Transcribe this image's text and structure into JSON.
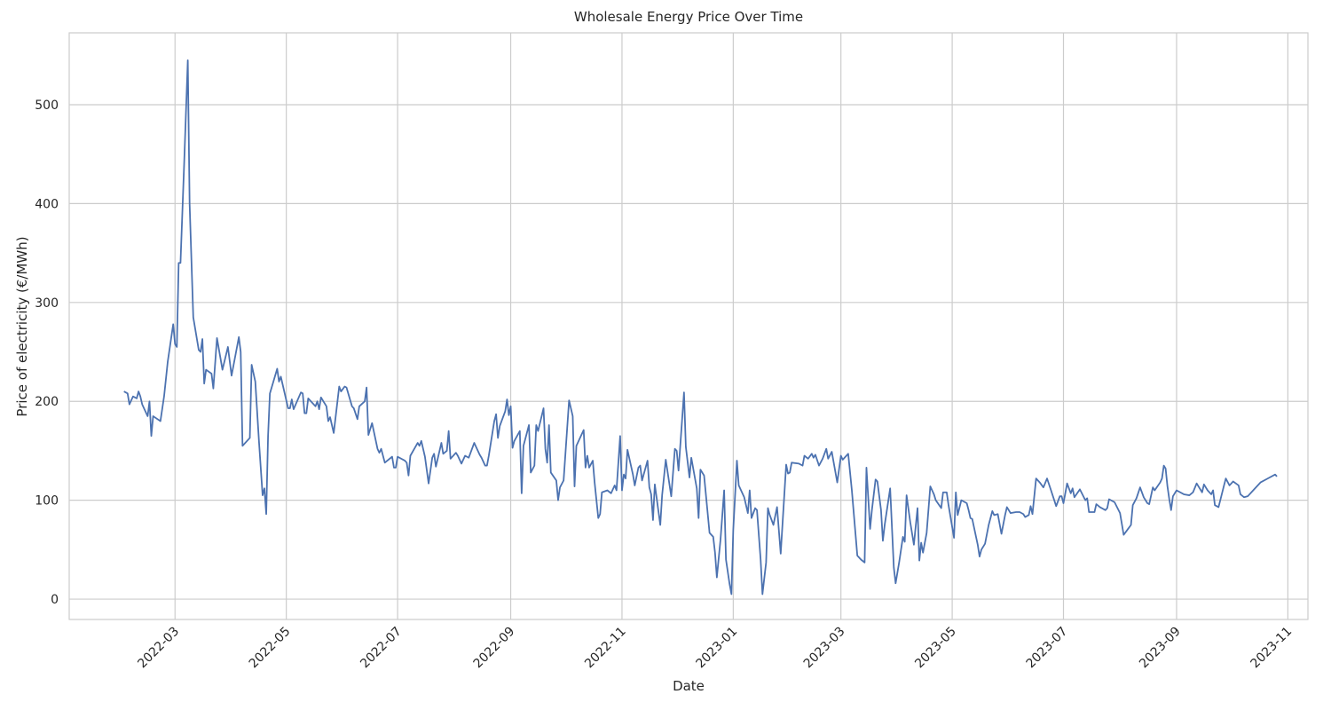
{
  "chart_data": {
    "type": "line",
    "title": "Wholesale Energy Price Over Time",
    "x_label": "Date",
    "y_label": "Price of electricity (€/MWh)",
    "grid": true,
    "xlim": [
      18994,
      19673
    ],
    "xticks": [
      {
        "value": 19052,
        "label": "2022-03"
      },
      {
        "value": 19113,
        "label": "2022-05"
      },
      {
        "value": 19174,
        "label": "2022-07"
      },
      {
        "value": 19236,
        "label": "2022-09"
      },
      {
        "value": 19297,
        "label": "2022-11"
      },
      {
        "value": 19358,
        "label": "2023-01"
      },
      {
        "value": 19417,
        "label": "2023-03"
      },
      {
        "value": 19478,
        "label": "2023-05"
      },
      {
        "value": 19539,
        "label": "2023-07"
      },
      {
        "value": 19601,
        "label": "2023-09"
      },
      {
        "value": 19662,
        "label": "2023-11"
      }
    ],
    "ylim": [
      -20.6,
      572.7
    ],
    "yticks": [
      0,
      100,
      200,
      300,
      400,
      500
    ],
    "x": [
      19024,
      19026,
      19027,
      19029,
      19031,
      19032,
      19033,
      19034,
      19037,
      19038,
      19039,
      19040,
      19044,
      19046,
      19048,
      19051,
      19052,
      19053,
      19054,
      19055,
      19057,
      19059,
      19060,
      19062,
      19065,
      19066,
      19067,
      19068,
      19069,
      19072,
      19073,
      19075,
      19078,
      19081,
      19083,
      19087,
      19088,
      19089,
      19093,
      19094,
      19096,
      19098,
      19100,
      19101,
      19102,
      19103,
      19104,
      19108,
      19109,
      19110,
      19114,
      19115,
      19116,
      19117,
      19121,
      19122,
      19123,
      19124,
      19125,
      19129,
      19130,
      19131,
      19132,
      19135,
      19136,
      19137,
      19139,
      19142,
      19143,
      19145,
      19146,
      19149,
      19150,
      19152,
      19153,
      19156,
      19157,
      19158,
      19160,
      19163,
      19164,
      19165,
      19167,
      19171,
      19172,
      19173,
      19174,
      19178,
      19179,
      19180,
      19181,
      19185,
      19186,
      19187,
      19189,
      19191,
      19193,
      19194,
      19195,
      19198,
      19199,
      19201,
      19202,
      19203,
      19206,
      19207,
      19209,
      19211,
      19213,
      19216,
      19219,
      19220,
      19222,
      19223,
      19224,
      19227,
      19228,
      19229,
      19230,
      19233,
      19234,
      19235,
      19236,
      19237,
      19238,
      19241,
      19242,
      19243,
      19246,
      19247,
      19249,
      19250,
      19251,
      19254,
      19255,
      19256,
      19257,
      19258,
      19261,
      19262,
      19263,
      19265,
      19268,
      19270,
      19271,
      19272,
      19276,
      19277,
      19278,
      19279,
      19281,
      19282,
      19284,
      19285,
      19286,
      19289,
      19291,
      19293,
      19294,
      19296,
      19297,
      19298,
      19299,
      19300,
      19303,
      19304,
      19306,
      19307,
      19308,
      19311,
      19312,
      19313,
      19314,
      19315,
      19318,
      19319,
      19321,
      19324,
      19326,
      19327,
      19328,
      19331,
      19332,
      19334,
      19335,
      19338,
      19339,
      19340,
      19342,
      19345,
      19347,
      19348,
      19349,
      19351,
      19353,
      19354,
      19356,
      19357,
      19358,
      19360,
      19361,
      19364,
      19366,
      19367,
      19368,
      19370,
      19371,
      19373,
      19374,
      19376,
      19377,
      19378,
      19380,
      19382,
      19384,
      19387,
      19388,
      19389,
      19390,
      19394,
      19396,
      19397,
      19399,
      19401,
      19402,
      19403,
      19405,
      19407,
      19409,
      19410,
      19412,
      19415,
      19417,
      19418,
      19421,
      19423,
      19426,
      19428,
      19430,
      19431,
      19433,
      19434,
      19436,
      19437,
      19439,
      19440,
      19441,
      19444,
      19446,
      19447,
      19449,
      19451,
      19452,
      19453,
      19455,
      19457,
      19459,
      19460,
      19461,
      19462,
      19464,
      19466,
      19468,
      19469,
      19472,
      19473,
      19475,
      19476,
      19479,
      19480,
      19481,
      19483,
      19486,
      19487,
      19488,
      19489,
      19492,
      19493,
      19494,
      19496,
      19498,
      19500,
      19501,
      19503,
      19505,
      19507,
      19508,
      19510,
      19513,
      19515,
      19517,
      19518,
      19520,
      19521,
      19522,
      19524,
      19526,
      19528,
      19530,
      19532,
      19535,
      19537,
      19538,
      19539,
      19541,
      19543,
      19544,
      19545,
      19548,
      19551,
      19552,
      19553,
      19556,
      19557,
      19559,
      19562,
      19563,
      19564,
      19567,
      19570,
      19572,
      19574,
      19576,
      19577,
      19579,
      19581,
      19583,
      19585,
      19586,
      19588,
      19589,
      19592,
      19593,
      19594,
      19595,
      19596,
      19597,
      19598,
      19599,
      19601,
      19605,
      19608,
      19610,
      19612,
      19615,
      19616,
      19618,
      19620,
      19621,
      19622,
      19624,
      19627,
      19628,
      19630,
      19632,
      19635,
      19636,
      19638,
      19640,
      19643,
      19647,
      19651,
      19655,
      19656
    ],
    "series": [
      {
        "name": "Price",
        "color": "#4c72b0",
        "values": [
          210,
          208,
          197,
          205,
          203,
          210,
          205,
          197,
          185,
          200,
          165,
          185,
          180,
          205,
          240,
          278,
          258,
          255,
          340,
          340,
          440,
          545,
          400,
          285,
          252,
          250,
          263,
          218,
          232,
          228,
          213,
          264,
          232,
          255,
          226,
          265,
          250,
          155,
          163,
          237,
          220,
          160,
          105,
          112,
          86,
          165,
          208,
          233,
          220,
          225,
          193,
          193,
          202,
          192,
          209,
          208,
          188,
          188,
          203,
          195,
          200,
          192,
          204,
          195,
          180,
          184,
          168,
          215,
          210,
          215,
          214,
          195,
          193,
          182,
          195,
          200,
          214,
          166,
          178,
          152,
          148,
          152,
          138,
          144,
          133,
          133,
          144,
          140,
          138,
          125,
          145,
          158,
          155,
          160,
          144,
          117,
          143,
          147,
          134,
          158,
          147,
          150,
          170,
          142,
          148,
          145,
          137,
          145,
          143,
          158,
          146,
          143,
          135,
          135,
          145,
          180,
          187,
          163,
          175,
          190,
          202,
          186,
          195,
          153,
          160,
          170,
          107,
          155,
          176,
          128,
          135,
          176,
          170,
          193,
          152,
          138,
          176,
          128,
          120,
          100,
          113,
          120,
          201,
          185,
          114,
          155,
          171,
          133,
          145,
          133,
          140,
          118,
          82,
          86,
          108,
          110,
          107,
          115,
          110,
          165,
          110,
          126,
          122,
          151,
          126,
          115,
          133,
          135,
          120,
          140,
          113,
          106,
          80,
          116,
          75,
          105,
          141,
          104,
          152,
          150,
          130,
          209,
          154,
          123,
          143,
          112,
          82,
          131,
          125,
          67,
          63,
          47,
          22,
          60,
          110,
          40,
          15,
          5,
          70,
          140,
          115,
          103,
          87,
          110,
          82,
          92,
          90,
          40,
          5,
          37,
          92,
          85,
          75,
          93,
          46,
          136,
          127,
          128,
          138,
          137,
          135,
          145,
          142,
          147,
          143,
          146,
          135,
          142,
          152,
          142,
          149,
          118,
          145,
          141,
          147,
          110,
          44,
          40,
          37,
          133,
          71,
          90,
          121,
          119,
          90,
          59,
          75,
          112,
          32,
          16,
          38,
          63,
          58,
          105,
          78,
          55,
          92,
          39,
          57,
          47,
          67,
          114,
          106,
          100,
          92,
          108,
          108,
          95,
          62,
          108,
          85,
          100,
          97,
          90,
          82,
          81,
          55,
          43,
          50,
          56,
          75,
          89,
          85,
          86,
          66,
          85,
          93,
          87,
          88,
          88,
          86,
          83,
          85,
          94,
          86,
          122,
          118,
          113,
          122,
          111,
          94,
          104,
          104,
          97,
          117,
          107,
          112,
          103,
          111,
          100,
          102,
          88,
          88,
          96,
          93,
          90,
          92,
          101,
          98,
          87,
          65,
          70,
          75,
          95,
          102,
          113,
          103,
          97,
          96,
          113,
          110,
          118,
          122,
          135,
          132,
          114,
          101,
          90,
          104,
          110,
          106,
          105,
          108,
          117,
          108,
          116,
          110,
          106,
          110,
          95,
          93,
          115,
          122,
          115,
          119,
          115,
          106,
          103,
          104,
          110,
          118,
          122,
          126,
          124
        ]
      }
    ]
  }
}
